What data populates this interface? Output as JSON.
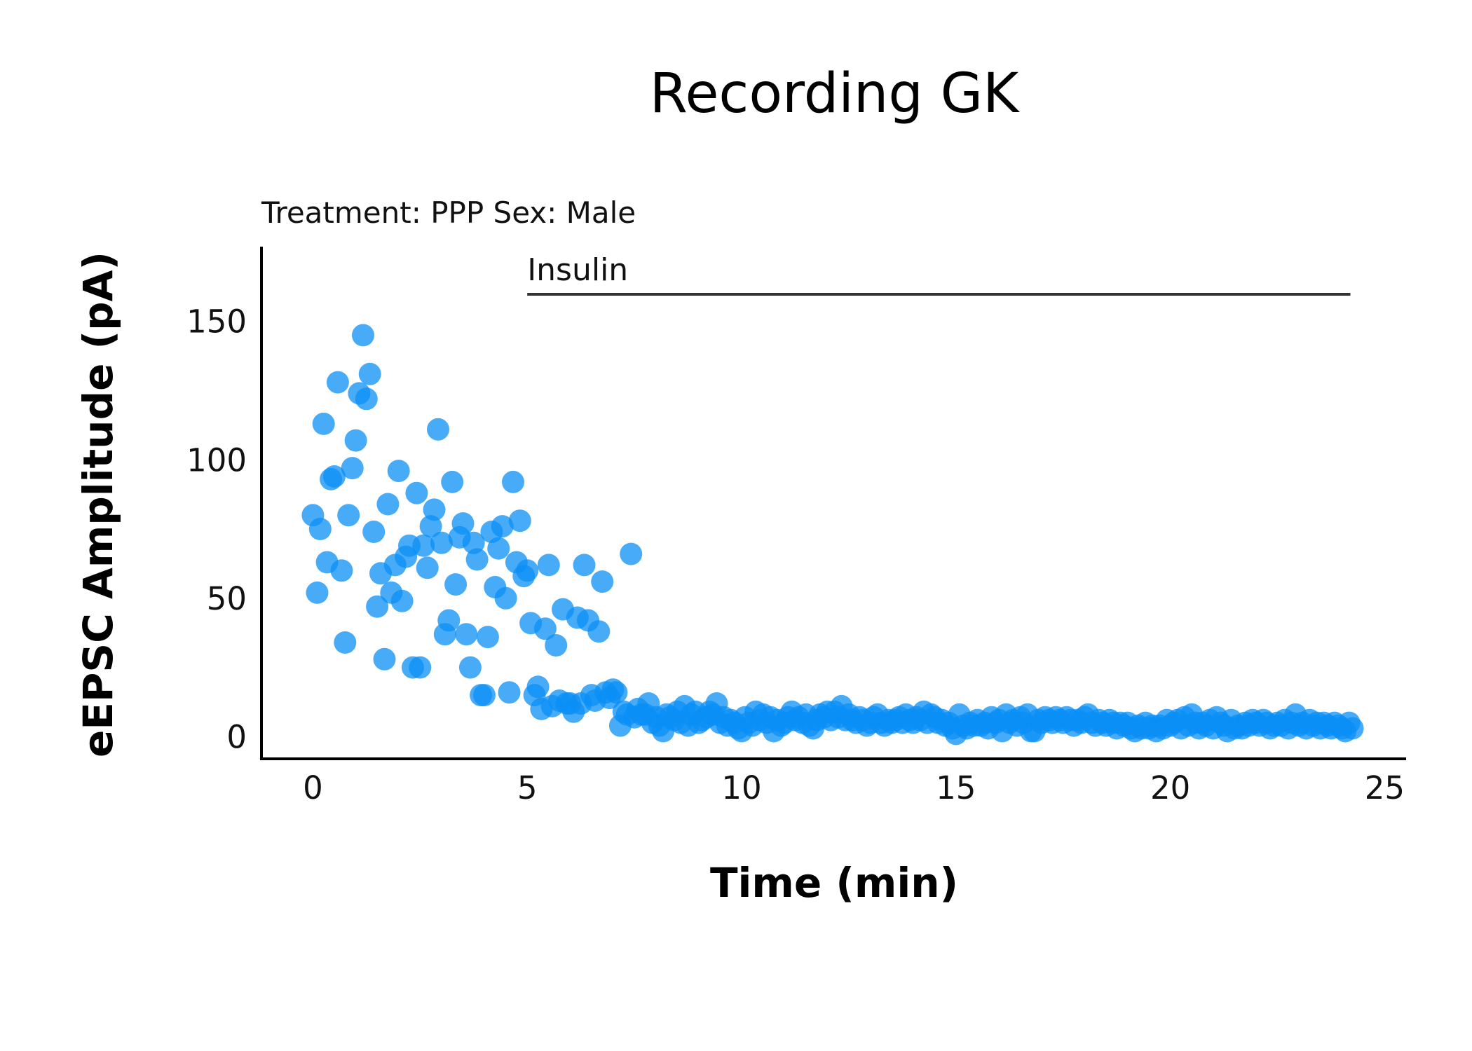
{
  "chart_data": {
    "type": "scatter",
    "title": "Recording GK",
    "subtitle": "Treatment: PPP  Sex: Male",
    "xlabel": "Time (min)",
    "ylabel": "eEPSC Amplitude (pA)",
    "xlim": [
      -1.2,
      25.5
    ],
    "ylim": [
      -8,
      177
    ],
    "xticks": [
      0,
      5,
      10,
      15,
      20,
      25
    ],
    "yticks": [
      0,
      50,
      100,
      150
    ],
    "grid": false,
    "point_color": "#0a8ff5",
    "annotation": {
      "text": "Insulin",
      "x_start": 5,
      "x_end": 24.2
    },
    "series": [
      {
        "values": [
          [
            0.0,
            80
          ],
          [
            0.1,
            52
          ],
          [
            0.17,
            75
          ],
          [
            0.25,
            113
          ],
          [
            0.33,
            63
          ],
          [
            0.42,
            93
          ],
          [
            0.5,
            94
          ],
          [
            0.58,
            128
          ],
          [
            0.67,
            60
          ],
          [
            0.75,
            34
          ],
          [
            0.83,
            80
          ],
          [
            0.92,
            97
          ],
          [
            1.0,
            107
          ],
          [
            1.08,
            124
          ],
          [
            1.17,
            145
          ],
          [
            1.25,
            122
          ],
          [
            1.33,
            131
          ],
          [
            1.42,
            74
          ],
          [
            1.5,
            47
          ],
          [
            1.58,
            59
          ],
          [
            1.67,
            28
          ],
          [
            1.75,
            84
          ],
          [
            1.83,
            52
          ],
          [
            1.92,
            62
          ],
          [
            2.0,
            96
          ],
          [
            2.08,
            49
          ],
          [
            2.17,
            65
          ],
          [
            2.25,
            69
          ],
          [
            2.33,
            25
          ],
          [
            2.42,
            88
          ],
          [
            2.5,
            25
          ],
          [
            2.58,
            69
          ],
          [
            2.67,
            61
          ],
          [
            2.75,
            76
          ],
          [
            2.83,
            82
          ],
          [
            2.92,
            111
          ],
          [
            3.0,
            70
          ],
          [
            3.08,
            37
          ],
          [
            3.17,
            42
          ],
          [
            3.25,
            92
          ],
          [
            3.33,
            55
          ],
          [
            3.42,
            72
          ],
          [
            3.5,
            77
          ],
          [
            3.58,
            37
          ],
          [
            3.67,
            25
          ],
          [
            3.75,
            70
          ],
          [
            3.83,
            64
          ],
          [
            3.92,
            15
          ],
          [
            4.0,
            15
          ],
          [
            4.08,
            36
          ],
          [
            4.17,
            74
          ],
          [
            4.25,
            54
          ],
          [
            4.33,
            68
          ],
          [
            4.42,
            76
          ],
          [
            4.5,
            50
          ],
          [
            4.58,
            16
          ],
          [
            4.67,
            92
          ],
          [
            4.75,
            63
          ],
          [
            4.83,
            78
          ],
          [
            4.92,
            58
          ],
          [
            5.0,
            60
          ],
          [
            5.08,
            41
          ],
          [
            5.17,
            15
          ],
          [
            5.25,
            18
          ],
          [
            5.33,
            10
          ],
          [
            5.42,
            39
          ],
          [
            5.5,
            62
          ],
          [
            5.58,
            11
          ],
          [
            5.67,
            33
          ],
          [
            5.75,
            13
          ],
          [
            5.83,
            46
          ],
          [
            5.92,
            12
          ],
          [
            6.0,
            12
          ],
          [
            6.08,
            9
          ],
          [
            6.17,
            43
          ],
          [
            6.25,
            12
          ],
          [
            6.33,
            62
          ],
          [
            6.42,
            42
          ],
          [
            6.5,
            15
          ],
          [
            6.58,
            13
          ],
          [
            6.67,
            38
          ],
          [
            6.75,
            56
          ],
          [
            6.83,
            16
          ],
          [
            6.92,
            14
          ],
          [
            7.0,
            17
          ],
          [
            7.08,
            16
          ],
          [
            7.17,
            4
          ],
          [
            7.25,
            9
          ],
          [
            7.33,
            8
          ],
          [
            7.42,
            66
          ],
          [
            7.5,
            7
          ],
          [
            7.58,
            10
          ],
          [
            7.67,
            8
          ],
          [
            7.75,
            8
          ],
          [
            7.83,
            12
          ],
          [
            7.92,
            5
          ],
          [
            8.0,
            7
          ],
          [
            8.08,
            4
          ],
          [
            8.17,
            2
          ],
          [
            8.25,
            8
          ],
          [
            8.33,
            7
          ],
          [
            8.42,
            6
          ],
          [
            8.5,
            9
          ],
          [
            8.58,
            5
          ],
          [
            8.67,
            11
          ],
          [
            8.75,
            4
          ],
          [
            8.83,
            8
          ],
          [
            8.92,
            9
          ],
          [
            9.0,
            5
          ],
          [
            9.08,
            6
          ],
          [
            9.17,
            7
          ],
          [
            9.25,
            9
          ],
          [
            9.33,
            8
          ],
          [
            9.42,
            12
          ],
          [
            9.5,
            5
          ],
          [
            9.58,
            7
          ],
          [
            9.67,
            4
          ],
          [
            9.75,
            6
          ],
          [
            9.83,
            5
          ],
          [
            9.92,
            3
          ],
          [
            10.0,
            2
          ],
          [
            10.08,
            7
          ],
          [
            10.17,
            5
          ],
          [
            10.25,
            4
          ],
          [
            10.33,
            9
          ],
          [
            10.42,
            6
          ],
          [
            10.5,
            8
          ],
          [
            10.58,
            5
          ],
          [
            10.67,
            7
          ],
          [
            10.75,
            2
          ],
          [
            10.83,
            6
          ],
          [
            10.92,
            4
          ],
          [
            11.0,
            5
          ],
          [
            11.08,
            7
          ],
          [
            11.17,
            9
          ],
          [
            11.25,
            6
          ],
          [
            11.33,
            7
          ],
          [
            11.42,
            5
          ],
          [
            11.5,
            8
          ],
          [
            11.58,
            4
          ],
          [
            11.67,
            3
          ],
          [
            11.75,
            6
          ],
          [
            11.83,
            8
          ],
          [
            11.92,
            7
          ],
          [
            12.0,
            9
          ],
          [
            12.08,
            6
          ],
          [
            12.17,
            9
          ],
          [
            12.25,
            7
          ],
          [
            12.33,
            11
          ],
          [
            12.42,
            6
          ],
          [
            12.5,
            8
          ],
          [
            12.58,
            6
          ],
          [
            12.67,
            5
          ],
          [
            12.75,
            7
          ],
          [
            12.83,
            6
          ],
          [
            12.92,
            4
          ],
          [
            13.0,
            5
          ],
          [
            13.08,
            7
          ],
          [
            13.17,
            8
          ],
          [
            13.25,
            5
          ],
          [
            13.33,
            4
          ],
          [
            13.42,
            6
          ],
          [
            13.5,
            5
          ],
          [
            13.58,
            6
          ],
          [
            13.67,
            7
          ],
          [
            13.75,
            5
          ],
          [
            13.83,
            8
          ],
          [
            13.92,
            6
          ],
          [
            14.0,
            5
          ],
          [
            14.08,
            7
          ],
          [
            14.17,
            6
          ],
          [
            14.25,
            9
          ],
          [
            14.33,
            5
          ],
          [
            14.42,
            8
          ],
          [
            14.5,
            7
          ],
          [
            14.58,
            5
          ],
          [
            14.67,
            6
          ],
          [
            14.75,
            4
          ],
          [
            14.83,
            5
          ],
          [
            14.92,
            3
          ],
          [
            15.0,
            1
          ],
          [
            15.08,
            8
          ],
          [
            15.17,
            4
          ],
          [
            15.25,
            3
          ],
          [
            15.33,
            5
          ],
          [
            15.42,
            4
          ],
          [
            15.5,
            6
          ],
          [
            15.58,
            4
          ],
          [
            15.67,
            5
          ],
          [
            15.75,
            3
          ],
          [
            15.83,
            7
          ],
          [
            15.92,
            5
          ],
          [
            16.0,
            6
          ],
          [
            16.08,
            2
          ],
          [
            16.17,
            8
          ],
          [
            16.25,
            5
          ],
          [
            16.33,
            6
          ],
          [
            16.42,
            4
          ],
          [
            16.5,
            7
          ],
          [
            16.58,
            5
          ],
          [
            16.67,
            8
          ],
          [
            16.75,
            2
          ],
          [
            16.83,
            2
          ],
          [
            16.92,
            6
          ],
          [
            17.0,
            5
          ],
          [
            17.08,
            7
          ],
          [
            17.17,
            6
          ],
          [
            17.25,
            5
          ],
          [
            17.33,
            7
          ],
          [
            17.42,
            6
          ],
          [
            17.5,
            5
          ],
          [
            17.58,
            7
          ],
          [
            17.67,
            6
          ],
          [
            17.75,
            4
          ],
          [
            17.83,
            6
          ],
          [
            17.92,
            5
          ],
          [
            18.0,
            7
          ],
          [
            18.08,
            8
          ],
          [
            18.17,
            5
          ],
          [
            18.25,
            4
          ],
          [
            18.33,
            6
          ],
          [
            18.42,
            5
          ],
          [
            18.5,
            4
          ],
          [
            18.58,
            6
          ],
          [
            18.67,
            5
          ],
          [
            18.75,
            3
          ],
          [
            18.83,
            5
          ],
          [
            18.92,
            4
          ],
          [
            19.0,
            5
          ],
          [
            19.08,
            3
          ],
          [
            19.17,
            2
          ],
          [
            19.25,
            4
          ],
          [
            19.33,
            3
          ],
          [
            19.42,
            5
          ],
          [
            19.5,
            3
          ],
          [
            19.58,
            4
          ],
          [
            19.67,
            2
          ],
          [
            19.75,
            4
          ],
          [
            19.83,
            3
          ],
          [
            19.92,
            6
          ],
          [
            20.0,
            4
          ],
          [
            20.08,
            5
          ],
          [
            20.17,
            6
          ],
          [
            20.25,
            3
          ],
          [
            20.33,
            7
          ],
          [
            20.42,
            4
          ],
          [
            20.5,
            8
          ],
          [
            20.58,
            5
          ],
          [
            20.67,
            3
          ],
          [
            20.75,
            5
          ],
          [
            20.83,
            4
          ],
          [
            20.92,
            6
          ],
          [
            21.0,
            3
          ],
          [
            21.08,
            7
          ],
          [
            21.17,
            5
          ],
          [
            21.25,
            4
          ],
          [
            21.33,
            2
          ],
          [
            21.42,
            6
          ],
          [
            21.5,
            3
          ],
          [
            21.58,
            4
          ],
          [
            21.67,
            3
          ],
          [
            21.75,
            5
          ],
          [
            21.83,
            4
          ],
          [
            21.92,
            6
          ],
          [
            22.0,
            5
          ],
          [
            22.08,
            4
          ],
          [
            22.17,
            6
          ],
          [
            22.25,
            5
          ],
          [
            22.33,
            3
          ],
          [
            22.42,
            4
          ],
          [
            22.5,
            5
          ],
          [
            22.58,
            4
          ],
          [
            22.67,
            6
          ],
          [
            22.75,
            3
          ],
          [
            22.83,
            5
          ],
          [
            22.92,
            8
          ],
          [
            23.0,
            4
          ],
          [
            23.08,
            5
          ],
          [
            23.17,
            3
          ],
          [
            23.25,
            6
          ],
          [
            23.33,
            4
          ],
          [
            23.42,
            5
          ],
          [
            23.5,
            3
          ],
          [
            23.58,
            5
          ],
          [
            23.67,
            4
          ],
          [
            23.75,
            3
          ],
          [
            23.83,
            5
          ],
          [
            23.92,
            4
          ],
          [
            24.0,
            3
          ],
          [
            24.08,
            2
          ],
          [
            24.17,
            5
          ],
          [
            24.25,
            3
          ]
        ]
      }
    ]
  }
}
